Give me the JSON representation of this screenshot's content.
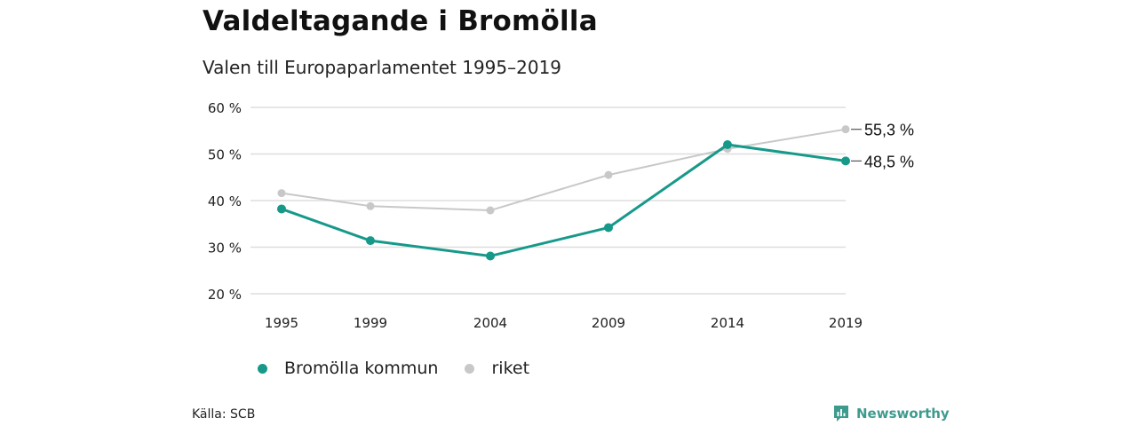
{
  "title": "Valdeltagande i Bromölla",
  "subtitle": "Valen till Europaparlamentet 1995–2019",
  "source": "Källa: SCB",
  "brand": {
    "name": "Newsworthy",
    "color": "#3d9b8e",
    "icon": "newsworthy-logo-icon"
  },
  "colors": {
    "bromolla": "#17998a",
    "riket": "#c8c8c8",
    "grid": "#dedede"
  },
  "chart_data": {
    "type": "line",
    "x": [
      "1995",
      "1999",
      "2004",
      "2009",
      "2014",
      "2019"
    ],
    "series": [
      {
        "name": "Bromölla kommun",
        "color": "#17998a",
        "values": [
          38.2,
          31.4,
          28.1,
          34.2,
          52.0,
          48.5
        ]
      },
      {
        "name": "riket",
        "color": "#c8c8c8",
        "values": [
          41.6,
          38.8,
          37.9,
          45.5,
          51.1,
          55.3
        ]
      }
    ],
    "y_ticks": [
      "20 %",
      "30 %",
      "40 %",
      "50 %",
      "60 %"
    ],
    "ylim": [
      20,
      60
    ],
    "grid": true,
    "legend_position": "bottom-left",
    "end_labels": [
      {
        "series": "riket",
        "text": "55,3 %",
        "value": 55.3
      },
      {
        "series": "Bromölla kommun",
        "text": "48,5 %",
        "value": 48.5
      }
    ]
  }
}
